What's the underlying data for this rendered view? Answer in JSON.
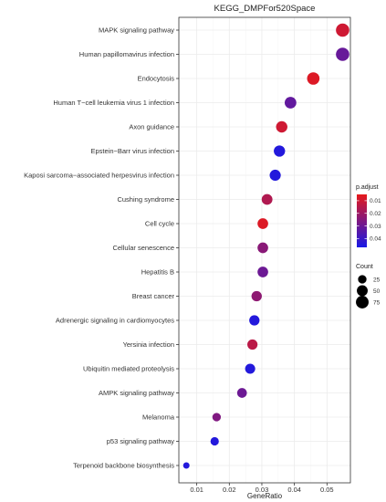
{
  "chart_data": {
    "type": "scatter",
    "title": "KEGG_DMPFor520Space",
    "xlabel": "GeneRatio",
    "ylabel": "",
    "xlim": [
      0.0045,
      0.0572
    ],
    "x_ticks": [
      "0.01",
      "0.02",
      "0.03",
      "0.04",
      "0.05"
    ],
    "x_tick_values": [
      0.01,
      0.02,
      0.03,
      0.04,
      0.05
    ],
    "grid": true,
    "legend_placement": "right",
    "points": [
      {
        "term": "MAPK signaling pathway",
        "gene_ratio": 0.0548,
        "count": 85,
        "p_adjust": 0.01
      },
      {
        "term": "Human papillomavirus infection",
        "gene_ratio": 0.0548,
        "count": 85,
        "p_adjust": 0.031
      },
      {
        "term": "Endocytosis",
        "gene_ratio": 0.0458,
        "count": 71,
        "p_adjust": 0.007
      },
      {
        "term": "Human T−cell leukemia virus 1 infection",
        "gene_ratio": 0.0388,
        "count": 60,
        "p_adjust": 0.032
      },
      {
        "term": "Axon guidance",
        "gene_ratio": 0.0361,
        "count": 56,
        "p_adjust": 0.01
      },
      {
        "term": "Epstein−Barr virus infection",
        "gene_ratio": 0.0354,
        "count": 55,
        "p_adjust": 0.045
      },
      {
        "term": "Kaposi sarcoma−associated herpesvirus infection",
        "gene_ratio": 0.0341,
        "count": 53,
        "p_adjust": 0.045
      },
      {
        "term": "Cushing syndrome",
        "gene_ratio": 0.0316,
        "count": 49,
        "p_adjust": 0.016
      },
      {
        "term": "Cell cycle",
        "gene_ratio": 0.0303,
        "count": 47,
        "p_adjust": 0.007
      },
      {
        "term": "Cellular senescence",
        "gene_ratio": 0.0303,
        "count": 47,
        "p_adjust": 0.024
      },
      {
        "term": "Hepatitis B",
        "gene_ratio": 0.0303,
        "count": 47,
        "p_adjust": 0.03
      },
      {
        "term": "Breast cancer",
        "gene_ratio": 0.0284,
        "count": 44,
        "p_adjust": 0.023
      },
      {
        "term": "Adrenergic signaling in cardiomyocytes",
        "gene_ratio": 0.0277,
        "count": 43,
        "p_adjust": 0.045
      },
      {
        "term": "Yersinia infection",
        "gene_ratio": 0.0271,
        "count": 42,
        "p_adjust": 0.014
      },
      {
        "term": "Ubiquitin mediated proteolysis",
        "gene_ratio": 0.0264,
        "count": 41,
        "p_adjust": 0.045
      },
      {
        "term": "AMPK signaling pathway",
        "gene_ratio": 0.0239,
        "count": 37,
        "p_adjust": 0.03
      },
      {
        "term": "Melanoma",
        "gene_ratio": 0.0161,
        "count": 25,
        "p_adjust": 0.026
      },
      {
        "term": "p53 signaling pathway",
        "gene_ratio": 0.0155,
        "count": 24,
        "p_adjust": 0.045
      },
      {
        "term": "Terpenoid backbone biosynthesis",
        "gene_ratio": 0.0068,
        "count": 10,
        "p_adjust": 0.045
      }
    ],
    "color_legend": {
      "title": "p.adjust",
      "ticks": [
        "0.01",
        "0.02",
        "0.03",
        "0.04"
      ],
      "tick_values": [
        0.01,
        0.02,
        0.03,
        0.04
      ],
      "range": [
        0.005,
        0.047
      ],
      "low_color": "#e6191b",
      "high_color": "#1919e6"
    },
    "size_legend": {
      "title": "Count",
      "labels": [
        "25",
        "50",
        "75"
      ],
      "values": [
        25,
        50,
        75
      ]
    }
  }
}
